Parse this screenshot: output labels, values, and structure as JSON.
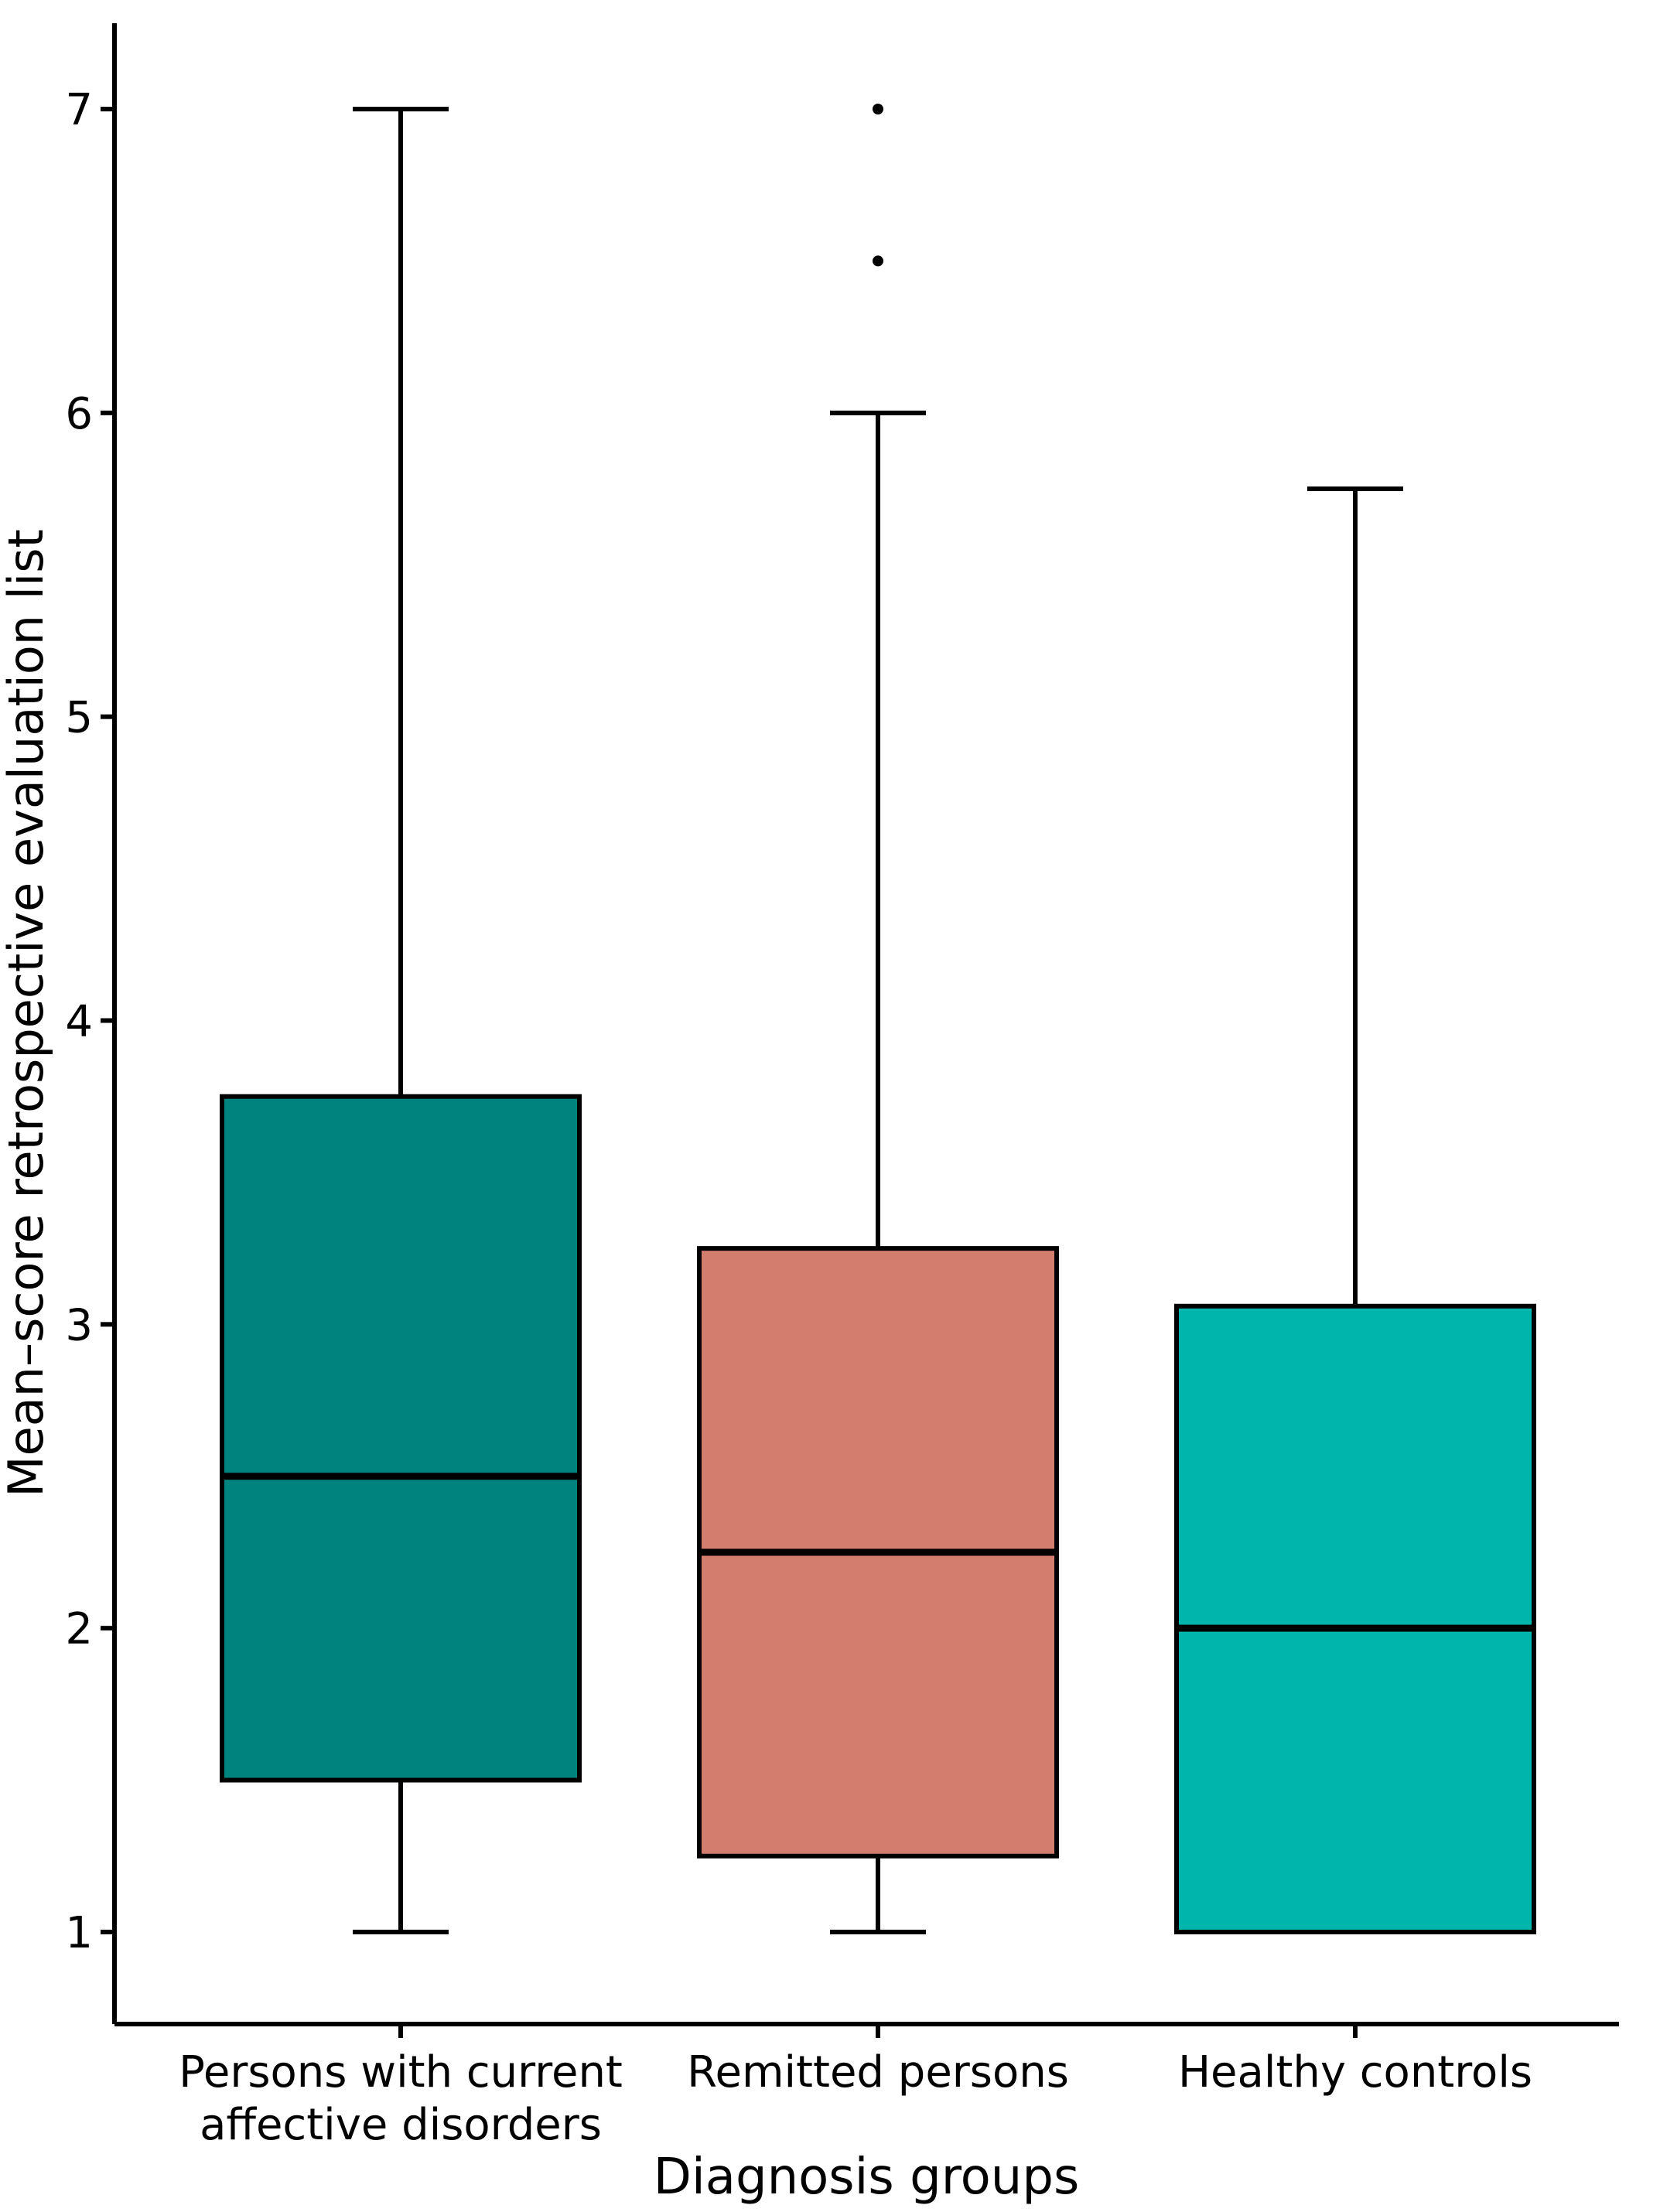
{
  "figure": {
    "background": "#FFFFFF",
    "line_color": "#000000"
  },
  "chart_data": {
    "type": "boxplot",
    "title": "",
    "xlabel": "Diagnosis groups",
    "ylabel": "Mean–score retrospective evaluation list",
    "ylim": [
      0.7,
      7.26
    ],
    "y_ticks": [
      1,
      2,
      3,
      4,
      5,
      6,
      7
    ],
    "grid": "off",
    "legend": "none",
    "categories": [
      "Persons with current\naffective disorders",
      "Remitted persons",
      "Healthy controls"
    ],
    "series": [
      {
        "name": "Persons with current affective disorders",
        "fill": "#00827F",
        "whisker_low": 1.0,
        "q1": 1.5,
        "median": 2.5,
        "q3": 3.75,
        "whisker_high": 7.0,
        "outliers": []
      },
      {
        "name": "Remitted persons",
        "fill": "#D37D6E",
        "whisker_low": 1.0,
        "q1": 1.25,
        "median": 2.25,
        "q3": 3.25,
        "whisker_high": 6.0,
        "outliers": [
          6.5,
          7.0
        ]
      },
      {
        "name": "Healthy controls",
        "fill": "#00B5AB",
        "whisker_low": 1.0,
        "q1": 1.0,
        "median": 2.0,
        "q3": 3.06,
        "whisker_high": 5.75,
        "outliers": []
      }
    ]
  }
}
